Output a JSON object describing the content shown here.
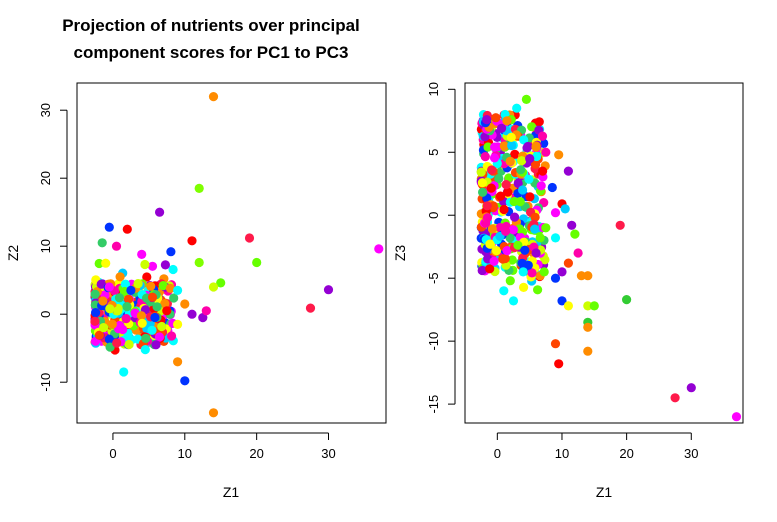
{
  "chart_data": [
    {
      "type": "scatter",
      "title_lines": [
        "Projection of nutrients over principal",
        "component scores for PC1 to PC3"
      ],
      "xlabel": "Z1",
      "ylabel": "Z2",
      "xlim": [
        -5,
        38
      ],
      "ylim": [
        -16,
        34
      ],
      "xticks": [
        0,
        10,
        20,
        30
      ],
      "yticks": [
        -10,
        0,
        10,
        20,
        30
      ],
      "grid": false,
      "points": [
        {
          "x": 14,
          "y": 32,
          "color": "#ff8c00"
        },
        {
          "x": 12,
          "y": 18.5,
          "color": "#7fff00"
        },
        {
          "x": 6.5,
          "y": 15,
          "color": "#9400d3"
        },
        {
          "x": 19,
          "y": 11.2,
          "color": "#ff1a4a"
        },
        {
          "x": 11,
          "y": 10.8,
          "color": "#ff0000"
        },
        {
          "x": 4,
          "y": 8.8,
          "color": "#ff00ff"
        },
        {
          "x": 37,
          "y": 9.6,
          "color": "#ff00ff"
        },
        {
          "x": 20,
          "y": 7.6,
          "color": "#66ff00"
        },
        {
          "x": 12,
          "y": 7.6,
          "color": "#7fff00"
        },
        {
          "x": 15,
          "y": 4.6,
          "color": "#66ff00"
        },
        {
          "x": 14,
          "y": 4,
          "color": "#ccff00"
        },
        {
          "x": 30,
          "y": 3.6,
          "color": "#9400d3"
        },
        {
          "x": 27.5,
          "y": 0.9,
          "color": "#ff1a4a"
        },
        {
          "x": 9,
          "y": -7,
          "color": "#ff8c00"
        },
        {
          "x": 10,
          "y": -9.8,
          "color": "#0033ff"
        },
        {
          "x": 14,
          "y": -14.5,
          "color": "#ff8c00"
        },
        {
          "x": 1.5,
          "y": -8.5,
          "color": "#00ffff"
        },
        {
          "x": -0.5,
          "y": 12.8,
          "color": "#0033ff"
        },
        {
          "x": 2,
          "y": 12.5,
          "color": "#ff0000"
        },
        {
          "x": -1.5,
          "y": 10.5,
          "color": "#33cc66"
        },
        {
          "x": 0.5,
          "y": 10,
          "color": "#ff00aa"
        },
        {
          "x": -1,
          "y": 7.5,
          "color": "#ffff00"
        },
        {
          "x": 3.5,
          "y": 4.5,
          "color": "#ccff00"
        },
        {
          "x": 7,
          "y": 4.2,
          "color": "#66ff00"
        },
        {
          "x": 8,
          "y": 3.8,
          "color": "#ff8c00"
        },
        {
          "x": 9,
          "y": 3.5,
          "color": "#00ffff"
        },
        {
          "x": 6,
          "y": -4.5,
          "color": "#9400d3"
        },
        {
          "x": 4.5,
          "y": -5.2,
          "color": "#00ffff"
        },
        {
          "x": 7.5,
          "y": 0.5,
          "color": "#ff0000"
        },
        {
          "x": 10,
          "y": 1.5,
          "color": "#ff8c00"
        },
        {
          "x": 11,
          "y": 0,
          "color": "#9400d3"
        },
        {
          "x": 12.5,
          "y": -0.5,
          "color": "#9400d3"
        },
        {
          "x": 13,
          "y": 0.5,
          "color": "#ff00aa"
        },
        {
          "x": 9,
          "y": -1.5,
          "color": "#ffff00"
        },
        {
          "x": 5.5,
          "y": 2.5,
          "color": "#ff4500"
        },
        {
          "x": 2.5,
          "y": 3.5,
          "color": "#0033ff"
        },
        {
          "x": 1,
          "y": 5.5,
          "color": "#ff8c00"
        },
        {
          "x": -0.5,
          "y": 4,
          "color": "#ff00ff"
        }
      ]
    },
    {
      "type": "scatter",
      "xlabel": "Z1",
      "ylabel": "Z3",
      "xlim": [
        -5,
        38
      ],
      "ylim": [
        -16.5,
        10.5
      ],
      "xticks": [
        0,
        10,
        20,
        30
      ],
      "yticks": [
        -15,
        -10,
        -5,
        0,
        5,
        10
      ],
      "grid": false,
      "points": [
        {
          "x": 4.5,
          "y": 9.2,
          "color": "#66ff00"
        },
        {
          "x": 3,
          "y": 8.5,
          "color": "#00ffff"
        },
        {
          "x": 1.5,
          "y": 7.5,
          "color": "#ff8c00"
        },
        {
          "x": 9.5,
          "y": 4.8,
          "color": "#ff8c00"
        },
        {
          "x": 11,
          "y": 3.5,
          "color": "#9400d3"
        },
        {
          "x": 8.5,
          "y": 2.2,
          "color": "#0033ff"
        },
        {
          "x": 9,
          "y": 0.2,
          "color": "#ff00ff"
        },
        {
          "x": 10,
          "y": 0.9,
          "color": "#ff0000"
        },
        {
          "x": 10.5,
          "y": 0.5,
          "color": "#00ccff"
        },
        {
          "x": 11.5,
          "y": -0.8,
          "color": "#9400d3"
        },
        {
          "x": 12,
          "y": -1.5,
          "color": "#66ff00"
        },
        {
          "x": 9,
          "y": -1.8,
          "color": "#00ffff"
        },
        {
          "x": 12.5,
          "y": -3,
          "color": "#ff00aa"
        },
        {
          "x": 19,
          "y": -0.8,
          "color": "#ff1a4a"
        },
        {
          "x": 11,
          "y": -3.8,
          "color": "#ff4500"
        },
        {
          "x": 10,
          "y": -4.5,
          "color": "#9400d3"
        },
        {
          "x": 13,
          "y": -4.8,
          "color": "#ff8c00"
        },
        {
          "x": 14,
          "y": -4.8,
          "color": "#ff8c00"
        },
        {
          "x": 9,
          "y": -5,
          "color": "#0033ff"
        },
        {
          "x": 4,
          "y": -4.5,
          "color": "#00ffff"
        },
        {
          "x": 2,
          "y": -5.2,
          "color": "#66ff00"
        },
        {
          "x": 1,
          "y": -6,
          "color": "#00ffff"
        },
        {
          "x": 2.5,
          "y": -6.8,
          "color": "#00ffff"
        },
        {
          "x": 10,
          "y": -6.8,
          "color": "#0033ff"
        },
        {
          "x": 11,
          "y": -7.2,
          "color": "#ffff00"
        },
        {
          "x": 14,
          "y": -7.2,
          "color": "#ccff00"
        },
        {
          "x": 15,
          "y": -7.2,
          "color": "#66ff00"
        },
        {
          "x": 20,
          "y": -6.7,
          "color": "#33cc33"
        },
        {
          "x": 14,
          "y": -8.5,
          "color": "#33cc33"
        },
        {
          "x": 14,
          "y": -8.9,
          "color": "#ff8c00"
        },
        {
          "x": 9,
          "y": -10.2,
          "color": "#ff4500"
        },
        {
          "x": 14,
          "y": -10.8,
          "color": "#ff8c00"
        },
        {
          "x": 9.5,
          "y": -11.8,
          "color": "#ff0000"
        },
        {
          "x": 27.5,
          "y": -14.5,
          "color": "#ff1a4a"
        },
        {
          "x": 30,
          "y": -13.7,
          "color": "#9400d3"
        },
        {
          "x": 37,
          "y": -16,
          "color": "#ff00ff"
        },
        {
          "x": 7,
          "y": 3.5,
          "color": "#ff0000"
        },
        {
          "x": 6,
          "y": 5.5,
          "color": "#ff8c00"
        },
        {
          "x": 5,
          "y": 4.5,
          "color": "#9400d3"
        },
        {
          "x": 7.5,
          "y": -1,
          "color": "#66ff00"
        },
        {
          "x": 6,
          "y": -3,
          "color": "#9400d3"
        }
      ]
    }
  ]
}
